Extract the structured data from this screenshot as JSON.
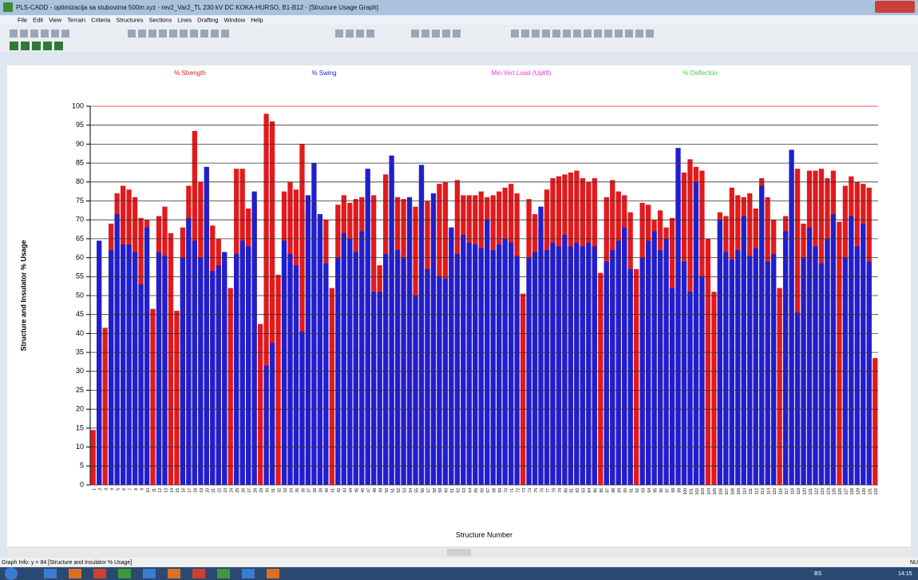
{
  "window": {
    "title": "PLS-CADD - optimizacija sa stubovima 500m.xyz - rev2_Var2_TL 230 kV DC KOKA-HURSO, B1-B12 - [Structure Usage Graph]",
    "menu": [
      "File",
      "Edit",
      "View",
      "Terrain",
      "Criteria",
      "Structures",
      "Sections",
      "Lines",
      "Drafting",
      "Window",
      "Help"
    ]
  },
  "status": "Graph Info: y = 84 [Structure and Insulator % Usage]",
  "taskbar": {
    "lang": "BS",
    "time": "14:15",
    "edge": "NU"
  },
  "chart_data": {
    "type": "bar",
    "x_label": "Structure Number",
    "y_label": "Structure and Insulator % Usage",
    "ylim": [
      0,
      100
    ],
    "yticks": [
      0,
      5,
      10,
      15,
      20,
      25,
      30,
      35,
      40,
      45,
      50,
      55,
      60,
      65,
      70,
      75,
      80,
      85,
      90,
      95,
      100
    ],
    "grid": true,
    "categories": [
      "1",
      "2",
      "3",
      "4",
      "5",
      "6",
      "7",
      "8",
      "9",
      "10",
      "11",
      "12",
      "13",
      "14",
      "15",
      "16",
      "17",
      "18",
      "19",
      "20",
      "21",
      "22",
      "23",
      "24",
      "25",
      "26",
      "27",
      "28",
      "29",
      "30",
      "31",
      "32",
      "33",
      "34",
      "35",
      "36",
      "37",
      "38",
      "39",
      "40",
      "41",
      "42",
      "43",
      "44",
      "45",
      "46",
      "47",
      "48",
      "49",
      "50",
      "51",
      "52",
      "53",
      "54",
      "55",
      "56",
      "57",
      "58",
      "59",
      "60",
      "61",
      "62",
      "63",
      "64",
      "65",
      "66",
      "67",
      "68",
      "69",
      "70",
      "71",
      "72",
      "73",
      "74",
      "75",
      "76",
      "77",
      "78",
      "79",
      "80",
      "81",
      "82",
      "83",
      "84",
      "85",
      "86",
      "87",
      "88",
      "89",
      "90",
      "91",
      "92",
      "93",
      "94",
      "95",
      "96",
      "97",
      "98",
      "99",
      "100",
      "101",
      "102",
      "103",
      "104",
      "105",
      "106",
      "107",
      "108",
      "109",
      "110",
      "111",
      "112",
      "113",
      "114",
      "115",
      "116",
      "117",
      "118",
      "119",
      "120",
      "121",
      "122",
      "123",
      "124",
      "125",
      "126",
      "127",
      "128",
      "129",
      "130",
      "131",
      "132"
    ],
    "series": [
      {
        "name": "% Strength",
        "color": "#e31a1c",
        "values": [
          14.5,
          42,
          41.5,
          69,
          77,
          79,
          78,
          76,
          70.5,
          70,
          46.5,
          71,
          73.5,
          66.5,
          46,
          68,
          79,
          93.5,
          80,
          74,
          68.5,
          65,
          59,
          52,
          83.5,
          83.5,
          73,
          74.5,
          42.5,
          98,
          96,
          55.5,
          77.5,
          80,
          78,
          90,
          72,
          74,
          65,
          70,
          52,
          74,
          76.5,
          74.5,
          75.5,
          76,
          76,
          76.5,
          58,
          82,
          84,
          76,
          75.5,
          74.5,
          73.5,
          82,
          75,
          73,
          79.5,
          80,
          67,
          80.5,
          76.5,
          76.5,
          76.5,
          77.5,
          76,
          76.5,
          77.5,
          78.5,
          79.5,
          77,
          50.5,
          75.5,
          71.5,
          68,
          78,
          81,
          81.5,
          82,
          82.5,
          83,
          81,
          80,
          81,
          56,
          76,
          80.5,
          77.5,
          76.5,
          72,
          57,
          74.5,
          74,
          70,
          72.5,
          68,
          70.5,
          80,
          82.5,
          86,
          84,
          83,
          65,
          51,
          72,
          71,
          78.5,
          76.5,
          76,
          77,
          73,
          81,
          76,
          70,
          52,
          71,
          82.5,
          83.5,
          69,
          83,
          83,
          83.5,
          81,
          83,
          69.5,
          79,
          81.5,
          80,
          79.5,
          78.5,
          33.5
        ]
      },
      {
        "name": "% Swing",
        "color": "#1f1fcf",
        "values": [
          null,
          64.5,
          null,
          62,
          71.5,
          63.5,
          63.5,
          61.5,
          53,
          68,
          null,
          61.5,
          60.5,
          null,
          null,
          60,
          70.5,
          64.5,
          60,
          84,
          56.5,
          58,
          61.5,
          null,
          61,
          64.5,
          63,
          77.5,
          null,
          31.5,
          37.5,
          null,
          64.5,
          61,
          58,
          40.5,
          76.5,
          85,
          71.5,
          58.5,
          null,
          60,
          66.5,
          65,
          61.5,
          67,
          83.5,
          51,
          51,
          61,
          87,
          62,
          60,
          76,
          50,
          84.5,
          57,
          77,
          55,
          54.5,
          68,
          61,
          66,
          64,
          63.5,
          62.5,
          70,
          62,
          63.5,
          65,
          64,
          60.5,
          null,
          60,
          61.5,
          73.5,
          62,
          64,
          63,
          66,
          63,
          64,
          63,
          64,
          63,
          null,
          59,
          62,
          64.5,
          68,
          57,
          null,
          60,
          64.5,
          67,
          62,
          65,
          52,
          89,
          59,
          51,
          80,
          55,
          null,
          null,
          70,
          61.5,
          59.5,
          62,
          71,
          60.5,
          62.5,
          79,
          59,
          61,
          null,
          67,
          88.5,
          45.5,
          60,
          68,
          63,
          58.5,
          65,
          71.5,
          null,
          60,
          71,
          63,
          69,
          59,
          null
        ]
      },
      {
        "name": "Min.Vert.Load (Uplift)",
        "color": "#e040e0"
      },
      {
        "name": "% Deflecton",
        "color": "#40d040"
      }
    ]
  }
}
